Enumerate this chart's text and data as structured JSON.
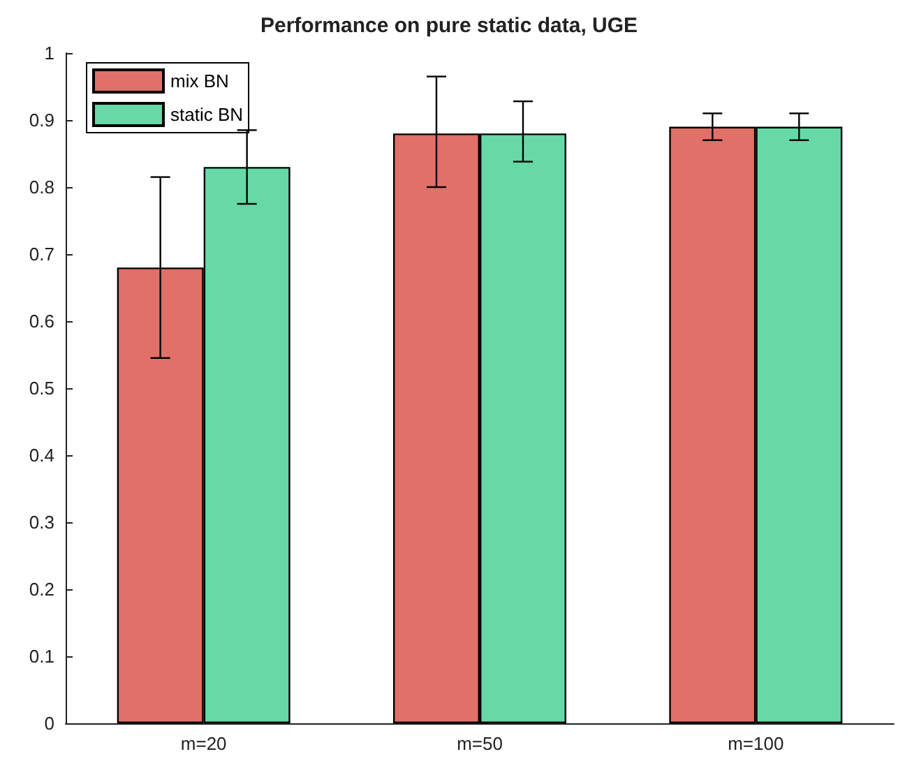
{
  "chart_data": {
    "type": "bar",
    "title": "Performance on pure static data, UGE",
    "categories": [
      "m=20",
      "m=50",
      "m=100"
    ],
    "series": [
      {
        "name": "mix BN",
        "color": "#e07068",
        "values": [
          0.68,
          0.88,
          0.89
        ],
        "errors": [
          [
            0.545,
            0.815
          ],
          [
            0.8,
            0.965
          ],
          [
            0.87,
            0.91
          ]
        ]
      },
      {
        "name": "static BN",
        "color": "#66d9a6",
        "values": [
          0.83,
          0.88,
          0.89
        ],
        "errors": [
          [
            0.775,
            0.885
          ],
          [
            0.838,
            0.928
          ],
          [
            0.87,
            0.91
          ]
        ]
      }
    ],
    "ylim": [
      0,
      1
    ],
    "yticks": [
      0,
      0.1,
      0.2,
      0.3,
      0.4,
      0.5,
      0.6,
      0.7,
      0.8,
      0.9,
      1
    ],
    "grid": false,
    "legend": "top left"
  }
}
